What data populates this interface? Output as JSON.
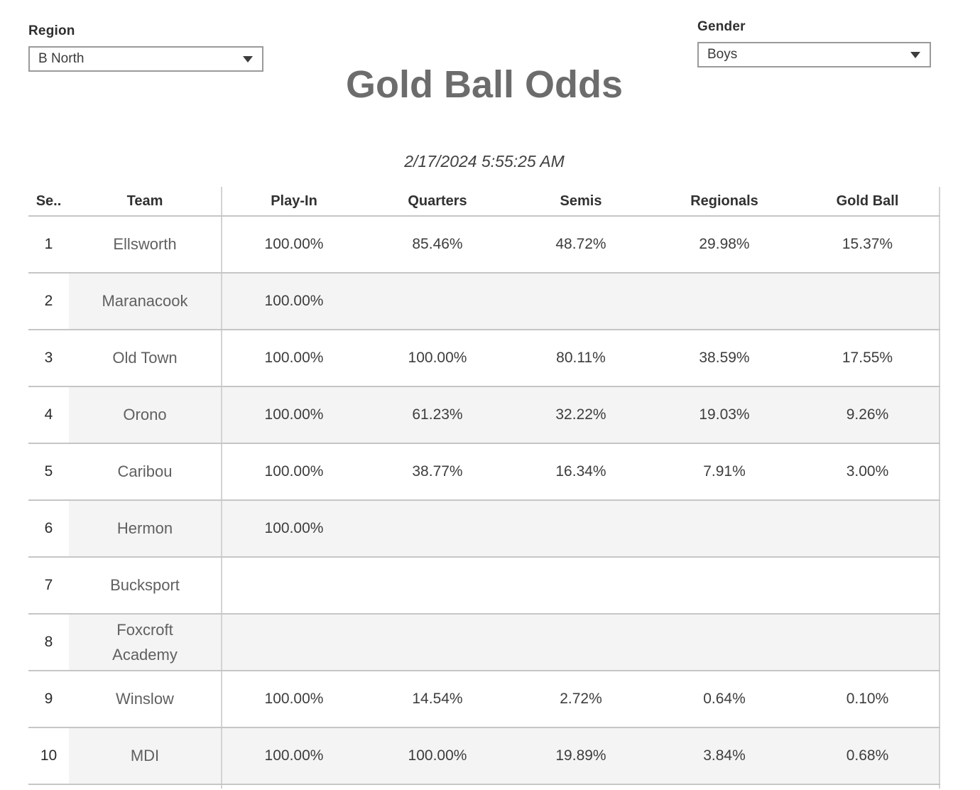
{
  "filters": {
    "region": {
      "label": "Region",
      "value": "B North"
    },
    "gender": {
      "label": "Gender",
      "value": "Boys"
    }
  },
  "title": "Gold Ball Odds",
  "timestamp": "2/17/2024 5:55:25 AM",
  "table": {
    "columns": [
      "Se..",
      "Team",
      "Play-In",
      "Quarters",
      "Semis",
      "Regionals",
      "Gold Ball"
    ],
    "rows": [
      {
        "seed": "1",
        "team": "Ellsworth",
        "values": [
          "100.00%",
          "85.46%",
          "48.72%",
          "29.98%",
          "15.37%"
        ],
        "shaded": false
      },
      {
        "seed": "2",
        "team": "Maranacook",
        "values": [
          "100.00%",
          "",
          "",
          "",
          ""
        ],
        "shaded": true
      },
      {
        "seed": "3",
        "team": "Old Town",
        "values": [
          "100.00%",
          "100.00%",
          "80.11%",
          "38.59%",
          "17.55%"
        ],
        "shaded": false
      },
      {
        "seed": "4",
        "team": "Orono",
        "values": [
          "100.00%",
          "61.23%",
          "32.22%",
          "19.03%",
          "9.26%"
        ],
        "shaded": true
      },
      {
        "seed": "5",
        "team": "Caribou",
        "values": [
          "100.00%",
          "38.77%",
          "16.34%",
          "7.91%",
          "3.00%"
        ],
        "shaded": false
      },
      {
        "seed": "6",
        "team": "Hermon",
        "values": [
          "100.00%",
          "",
          "",
          "",
          ""
        ],
        "shaded": true
      },
      {
        "seed": "7",
        "team": "Bucksport",
        "values": [
          "",
          "",
          "",
          "",
          ""
        ],
        "shaded": false
      },
      {
        "seed": "8",
        "team": "Foxcroft Academy",
        "values": [
          "",
          "",
          "",
          "",
          ""
        ],
        "shaded": true
      },
      {
        "seed": "9",
        "team": "Winslow",
        "values": [
          "100.00%",
          "14.54%",
          "2.72%",
          "0.64%",
          "0.10%"
        ],
        "shaded": false
      },
      {
        "seed": "10",
        "team": "MDI",
        "values": [
          "100.00%",
          "100.00%",
          "19.89%",
          "3.84%",
          "0.68%"
        ],
        "shaded": true
      }
    ]
  },
  "colors": {
    "shaded_row": "#f4f4f4",
    "grid_line": "#c6c6c6",
    "column_divider": "#d3d3d3",
    "title_text": "#6c6c6c"
  }
}
